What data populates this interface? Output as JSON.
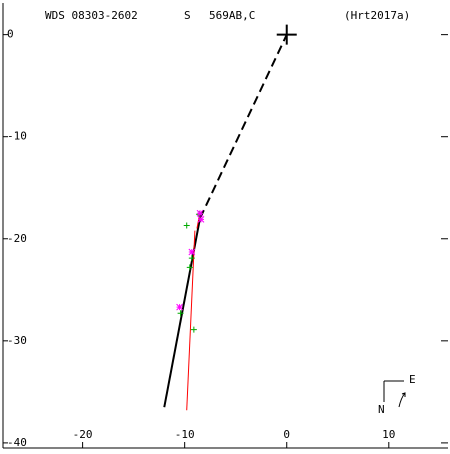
{
  "chart_data": {
    "type": "scatter",
    "header": {
      "id": "WDS 08303-2602",
      "flag": "S",
      "pair": "569AB,C",
      "ref": "(Hrt2017a)"
    },
    "compass": {
      "east": "E",
      "north": "N"
    },
    "xlim": [
      -27.8,
      15.8
    ],
    "ylim": [
      -40.5,
      3.1
    ],
    "xticks": [
      -20,
      -10,
      0,
      10
    ],
    "yticks": [
      0,
      -10,
      -20,
      -30,
      -40
    ],
    "series": [
      {
        "marker": "line",
        "color": "#000000",
        "x": [
          -12.0,
          -8.5
        ],
        "values": [
          -36.5,
          -18.0
        ]
      },
      {
        "marker": "dashed-line",
        "color": "#000000",
        "x": [
          -8.5,
          0
        ],
        "values": [
          -18.0,
          0
        ]
      },
      {
        "marker": "line",
        "color": "#ff0000",
        "x": [
          -9.8,
          -9.0
        ],
        "values": [
          -36.8,
          -19.2
        ]
      },
      {
        "marker": "line",
        "color": "#ff0000",
        "x": [
          -8.8,
          -8.5
        ],
        "values": [
          -19.0,
          -17.4
        ]
      },
      {
        "marker": "big-plus",
        "color": "#000000",
        "x": [
          0
        ],
        "values": [
          0
        ]
      },
      {
        "marker": "plus",
        "color": "#00aa00",
        "x": [
          -9.8,
          -9.5,
          -9.3,
          -9.1,
          -10.4,
          -8.6
        ],
        "values": [
          -18.7,
          -22.8,
          -21.9,
          -28.9,
          -27.3,
          -17.6
        ]
      },
      {
        "marker": "star",
        "color": "#ff00ff",
        "x": [
          -9.3,
          -10.5,
          -8.5,
          -8.4
        ],
        "values": [
          -21.3,
          -26.7,
          -17.5,
          -18.1
        ]
      }
    ]
  }
}
